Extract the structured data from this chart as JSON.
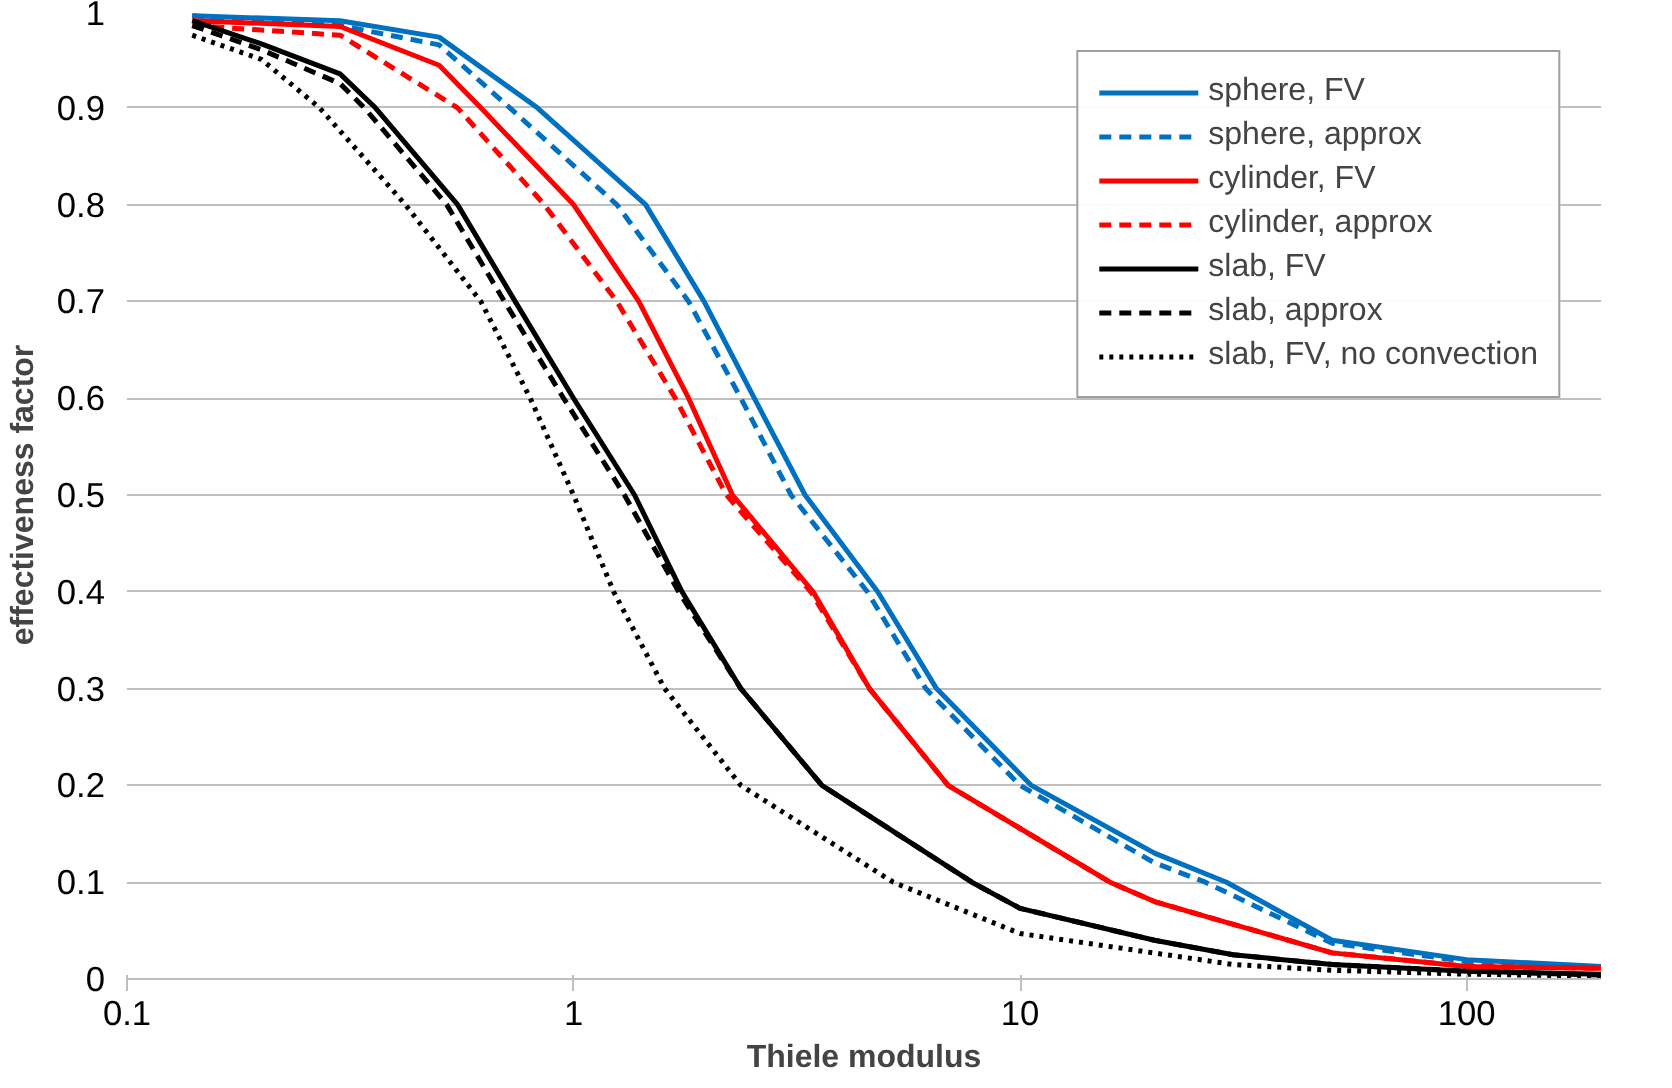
{
  "chart_data": {
    "type": "line",
    "xlabel": "Thiele modulus",
    "ylabel": "effectiveness factor",
    "log": "x",
    "xlim": [
      0.1,
      200
    ],
    "ylim": [
      0,
      1
    ],
    "xticks": [
      0.1,
      1,
      10,
      100
    ],
    "yticks": [
      0,
      0.1,
      0.2,
      0.3,
      0.4,
      0.5,
      0.6,
      0.7,
      0.8,
      0.9,
      1
    ],
    "grid": "y",
    "legend": "top right",
    "marker": "none",
    "series": [
      {
        "name": "sphere, FV",
        "color": "#0070c0",
        "line_style": "solid",
        "x": [
          0.14,
          0.3,
          0.5,
          0.83,
          1.45,
          1.96,
          2.54,
          3.3,
          4.8,
          6.5,
          10.6,
          20,
          29,
          50,
          100,
          200
        ],
        "values": [
          0.995,
          0.99,
          0.973,
          0.9,
          0.8,
          0.7,
          0.6,
          0.5,
          0.4,
          0.3,
          0.2,
          0.13,
          0.1,
          0.04,
          0.02,
          0.013
        ]
      },
      {
        "name": "sphere, approx",
        "color": "#0070c0",
        "line_style": "dashed",
        "x": [
          0.14,
          0.3,
          0.5,
          0.72,
          1.25,
          1.81,
          2.37,
          3.07,
          4.55,
          6.15,
          10,
          20,
          26,
          50,
          100,
          200
        ],
        "values": [
          0.995,
          0.985,
          0.965,
          0.9,
          0.8,
          0.7,
          0.6,
          0.5,
          0.4,
          0.3,
          0.2,
          0.12,
          0.1,
          0.037,
          0.018,
          0.012
        ]
      },
      {
        "name": "cylinder, FV",
        "color": "#ff0000",
        "line_style": "solid",
        "x": [
          0.14,
          0.3,
          0.5,
          0.62,
          1.0,
          1.4,
          1.81,
          2.27,
          3.44,
          4.6,
          6.9,
          15.9,
          20,
          50,
          100,
          200
        ],
        "values": [
          0.99,
          0.984,
          0.944,
          0.9,
          0.8,
          0.7,
          0.6,
          0.5,
          0.4,
          0.3,
          0.2,
          0.1,
          0.08,
          0.027,
          0.013,
          0.011
        ]
      },
      {
        "name": "cylinder, approx",
        "color": "#ff0000",
        "line_style": "dashed",
        "x": [
          0.14,
          0.3,
          0.55,
          0.86,
          1.25,
          1.69,
          2.2,
          3.4,
          4.6,
          6.9,
          15.9,
          20,
          50,
          100,
          200
        ],
        "values": [
          0.985,
          0.975,
          0.9,
          0.8,
          0.7,
          0.6,
          0.5,
          0.4,
          0.3,
          0.2,
          0.1,
          0.08,
          0.027,
          0.013,
          0.011
        ]
      },
      {
        "name": "slab, FV",
        "color": "#000000",
        "line_style": "solid",
        "x": [
          0.14,
          0.2,
          0.3,
          0.36,
          0.55,
          0.74,
          1.0,
          1.37,
          1.75,
          2.37,
          3.6,
          7.8,
          10,
          20,
          30,
          50,
          100,
          200
        ],
        "values": [
          0.99,
          0.966,
          0.935,
          0.9,
          0.8,
          0.7,
          0.6,
          0.5,
          0.4,
          0.3,
          0.2,
          0.1,
          0.073,
          0.04,
          0.025,
          0.015,
          0.008,
          0.005
        ]
      },
      {
        "name": "slab, approx",
        "color": "#000000",
        "line_style": "dashed",
        "x": [
          0.14,
          0.2,
          0.3,
          0.34,
          0.52,
          0.7,
          0.95,
          1.3,
          1.72,
          2.37,
          3.6,
          7.8,
          10,
          20,
          30,
          50,
          100,
          200
        ],
        "values": [
          0.985,
          0.96,
          0.925,
          0.9,
          0.8,
          0.7,
          0.6,
          0.5,
          0.4,
          0.3,
          0.2,
          0.1,
          0.073,
          0.04,
          0.025,
          0.015,
          0.008,
          0.004
        ]
      },
      {
        "name": "slab, FV, no convection",
        "color": "#000000",
        "line_style": "dotted",
        "x": [
          0.14,
          0.2,
          0.27,
          0.42,
          0.62,
          0.8,
          1.0,
          1.23,
          1.6,
          2.37,
          5.2,
          10,
          30,
          50,
          100,
          200
        ],
        "values": [
          0.975,
          0.95,
          0.9,
          0.8,
          0.7,
          0.6,
          0.5,
          0.4,
          0.3,
          0.2,
          0.1,
          0.047,
          0.015,
          0.009,
          0.005,
          0.003
        ]
      }
    ]
  }
}
